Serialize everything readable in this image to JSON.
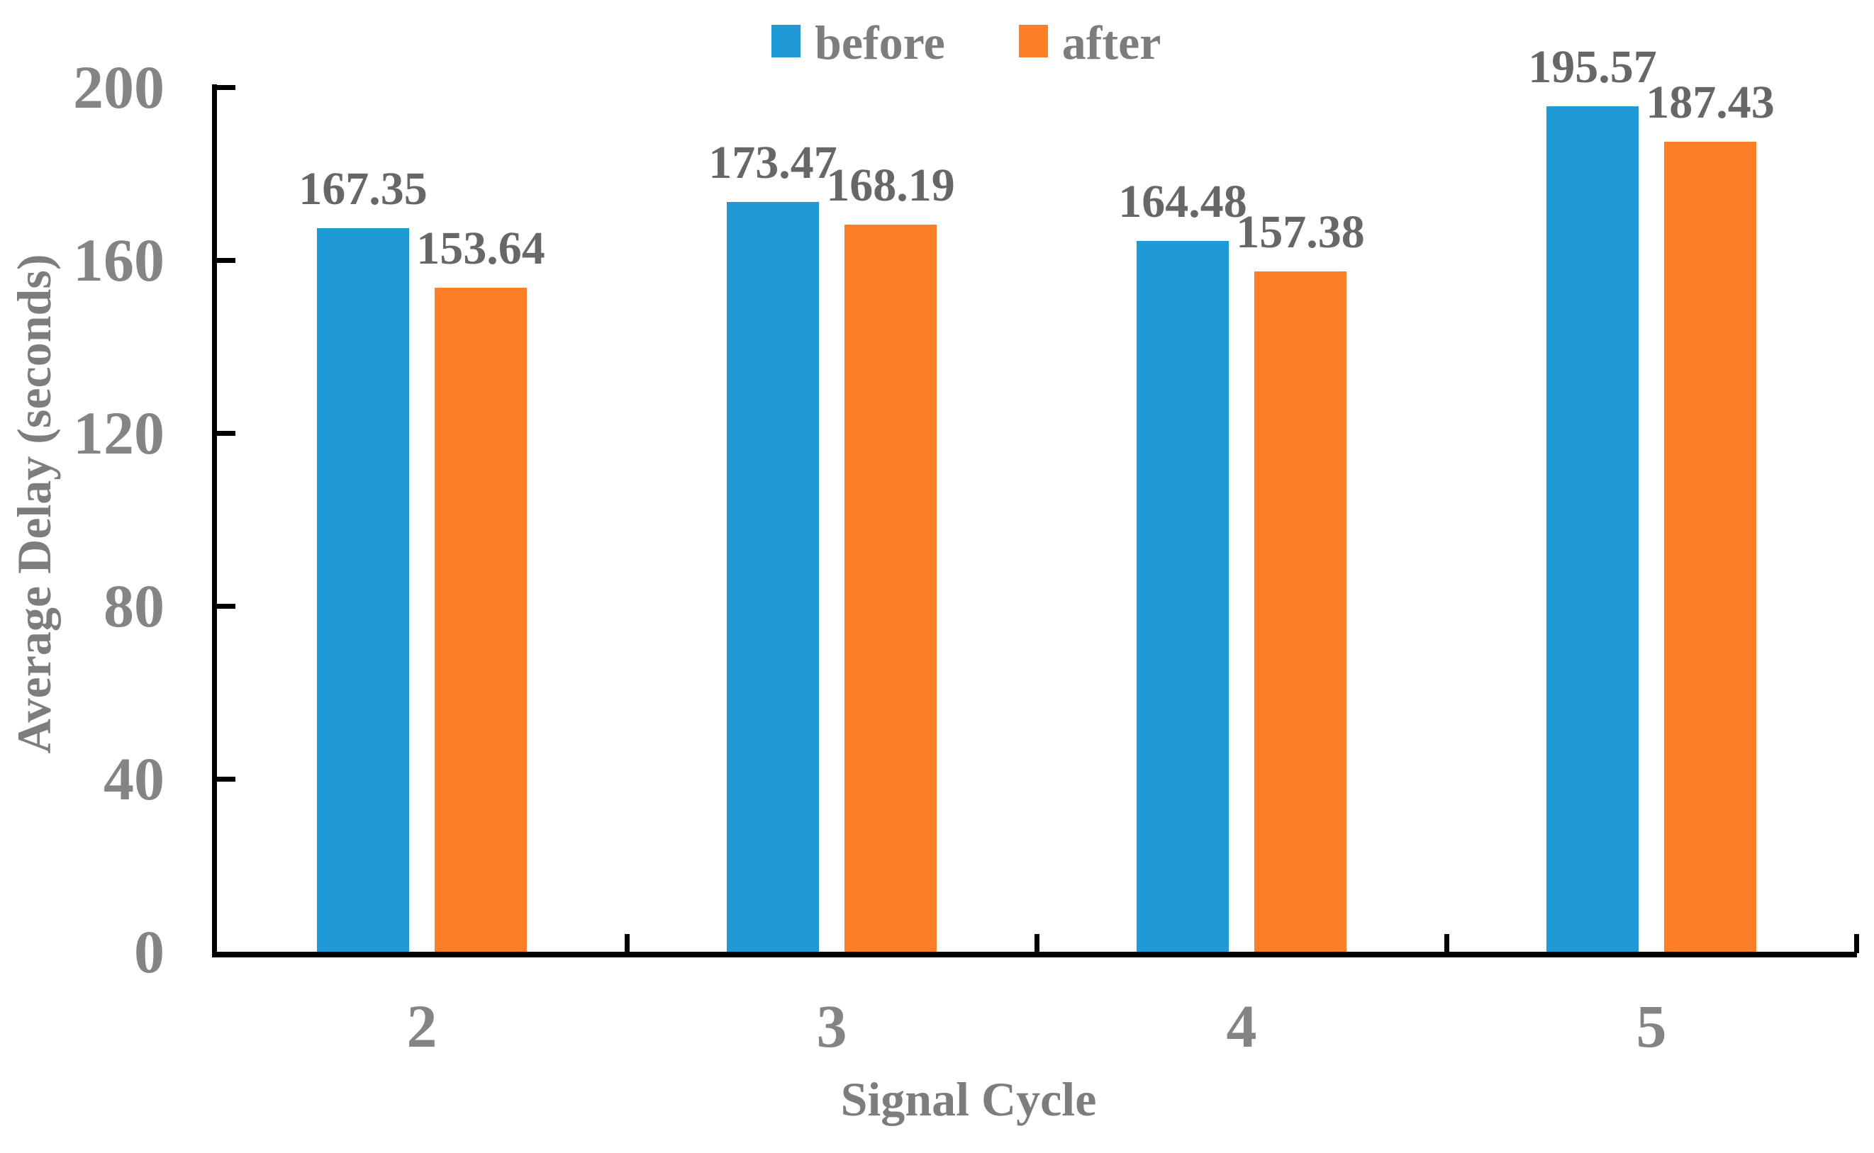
{
  "chart_data": {
    "type": "bar",
    "title": "",
    "xlabel": "Signal Cycle",
    "ylabel": "Average Delay (seconds)",
    "categories": [
      "2",
      "3",
      "4",
      "5"
    ],
    "series": [
      {
        "name": "before",
        "color": "#1f9ad7",
        "values": [
          167.35,
          173.47,
          164.48,
          195.57
        ]
      },
      {
        "name": "after",
        "color": "#fd7e26",
        "values": [
          153.64,
          168.19,
          157.38,
          187.43
        ]
      }
    ],
    "data_labels": [
      "167.35",
      "153.64",
      "173.47",
      "168.19",
      "164.48",
      "157.38",
      "195.57",
      "187.43"
    ],
    "ylim": [
      0,
      200
    ],
    "yticks": [
      0,
      40,
      80,
      120,
      160,
      200
    ],
    "grid": false,
    "legend_position": "top-center",
    "legend_entries": [
      "before",
      "after"
    ]
  },
  "colors": {
    "axis_line": "#000000",
    "axis_text": "#848484",
    "title_text": "#7d7d7d",
    "value_label_text": "#676767",
    "background": "#ffffff"
  }
}
